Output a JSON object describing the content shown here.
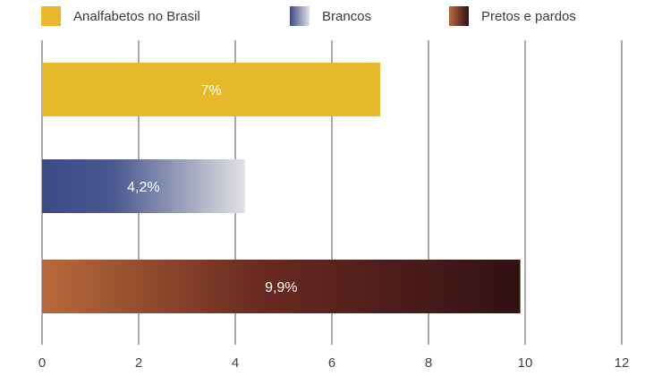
{
  "chart_data": {
    "type": "bar",
    "orientation": "horizontal",
    "categories": [
      "Analfabetos no Brasil",
      "Brancos",
      "Pretos e pardos"
    ],
    "values": [
      7,
      4.2,
      9.9
    ],
    "value_labels": [
      "7%",
      "4,2%",
      "9,9%"
    ],
    "xlim": [
      0,
      12
    ],
    "x_ticks": [
      "0",
      "2",
      "4",
      "6",
      "8",
      "10",
      "12"
    ],
    "grid": true,
    "legend": "top",
    "colors": {
      "Analfabetos no Brasil": {
        "from": "#e6b82a",
        "to": "#e6b82a"
      },
      "Brancos": {
        "from": "#3b4a86",
        "to": "#e2e2e2"
      },
      "Pretos e pardos": {
        "from": "#b86a3a",
        "to": "#311014"
      }
    }
  }
}
